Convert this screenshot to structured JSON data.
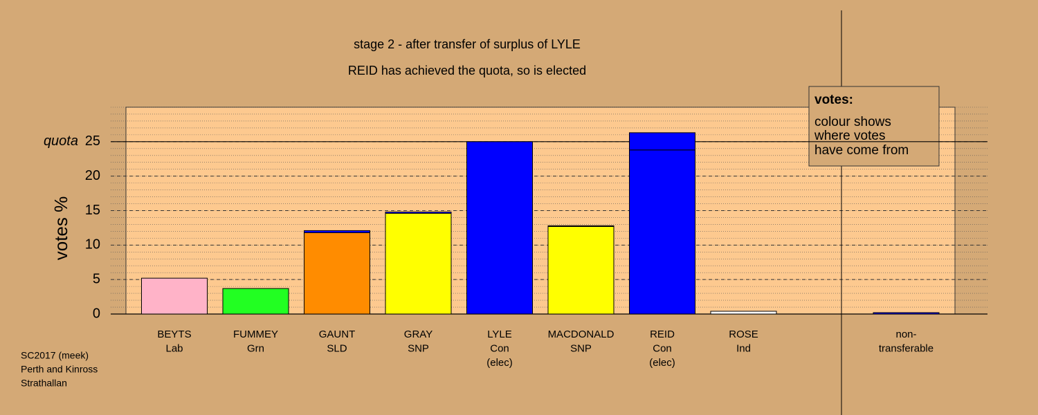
{
  "chart_data": {
    "type": "bar",
    "title": "stage 2 - after transfer of surplus of LYLE",
    "subtitle": "REID has achieved the quota, so is elected",
    "y_label": "votes %",
    "categories": [
      [
        "BEYTS",
        "Lab"
      ],
      [
        "FUMMEY",
        "Grn"
      ],
      [
        "GAUNT",
        "SLD"
      ],
      [
        "GRAY",
        "SNP"
      ],
      [
        "LYLE",
        "Con",
        "(elec)"
      ],
      [
        "MACDONALD",
        "SNP"
      ],
      [
        "REID",
        "Con",
        "(elec)"
      ],
      [
        "ROSE",
        "Ind"
      ],
      [
        "non-",
        "transferable"
      ]
    ],
    "series": [
      {
        "colors": [
          "#ffb3c8",
          "#22ff22",
          "#ff8c00",
          "#ffff00",
          "#0000ff",
          "#ffff00",
          "#0000ff",
          "#ffffff",
          "#0000ff"
        ],
        "values": [
          5.2,
          3.7,
          11.8,
          14.6,
          25,
          12.7,
          23.8,
          0.4,
          0
        ]
      },
      {
        "color": "#0000ff",
        "values": [
          0,
          0,
          0.3,
          0.2,
          0,
          0.1,
          2.5,
          0,
          0.2
        ]
      }
    ],
    "ylim": [
      0,
      30
    ],
    "yticks": [
      0,
      5,
      10,
      15,
      20,
      25
    ],
    "quota": {
      "value": 25,
      "label": "quota"
    },
    "grid": true,
    "legend_box": {
      "title": "votes:",
      "lines": [
        "colour shows",
        "where votes",
        "have come from"
      ]
    },
    "footer": [
      "SC2017 (meek)",
      "Perth and Kinross",
      "Strathallan"
    ]
  }
}
